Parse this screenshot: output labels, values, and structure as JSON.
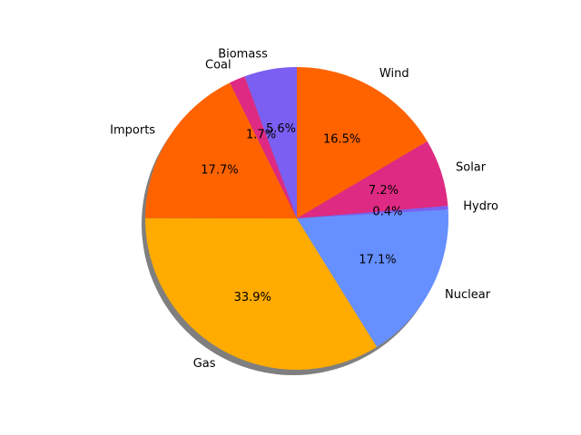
{
  "chart_data": {
    "type": "pie",
    "title": "",
    "shadow": true,
    "start_angle_deg": 90,
    "direction": "clockwise",
    "slices": [
      {
        "label": "Wind",
        "value": 16.5,
        "pct_label": "16.5%",
        "color": "#ff6300"
      },
      {
        "label": "Solar",
        "value": 7.2,
        "pct_label": "7.2%",
        "color": "#de2a82"
      },
      {
        "label": "Hydro",
        "value": 0.4,
        "pct_label": "0.4%",
        "color": "#7a5ff2"
      },
      {
        "label": "Nuclear",
        "value": 17.1,
        "pct_label": "17.1%",
        "color": "#6690ff"
      },
      {
        "label": "Gas",
        "value": 33.9,
        "pct_label": "33.9%",
        "color": "#ffab00"
      },
      {
        "label": "Imports",
        "value": 17.7,
        "pct_label": "17.7%",
        "color": "#ff6300"
      },
      {
        "label": "Coal",
        "value": 1.7,
        "pct_label": "1.7%",
        "color": "#de2a82"
      },
      {
        "label": "Biomass",
        "value": 5.6,
        "pct_label": "5.6%",
        "color": "#7a5ff2"
      }
    ]
  }
}
